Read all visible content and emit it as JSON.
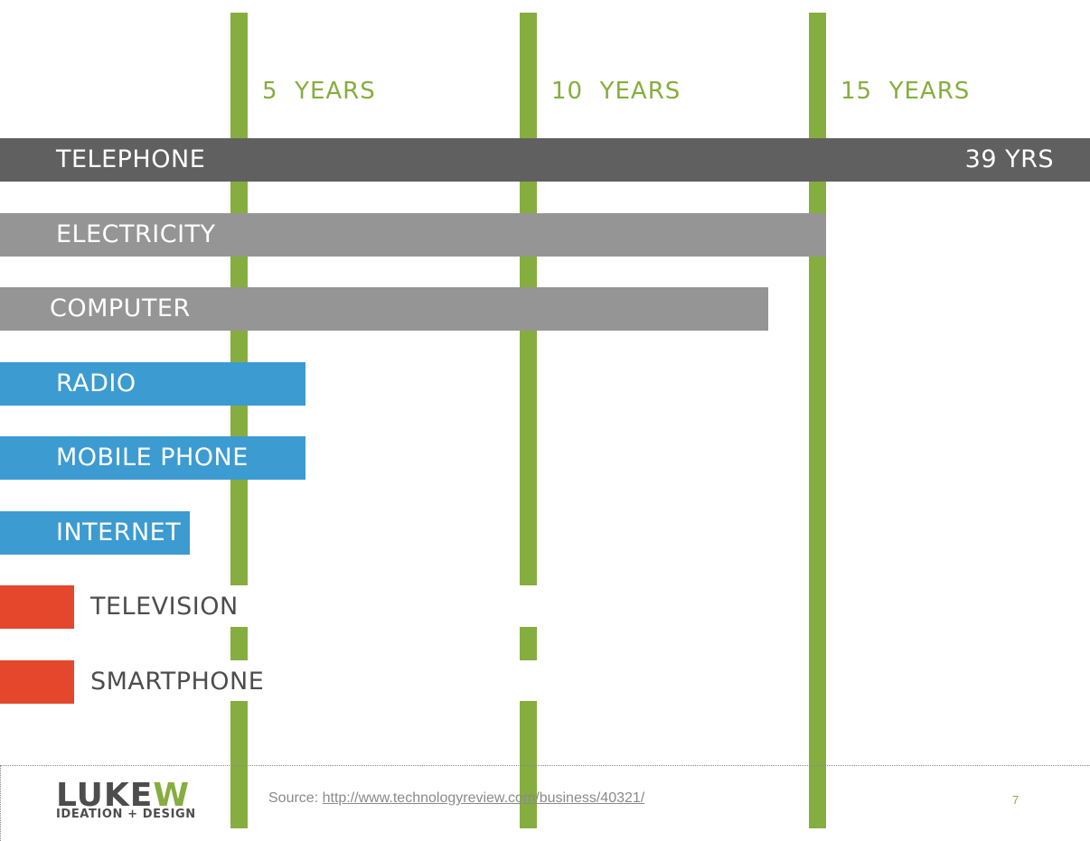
{
  "chart_data": {
    "type": "bar",
    "orientation": "horizontal",
    "title": "",
    "xlabel": "",
    "ylabel": "",
    "xlim": [
      0,
      39
    ],
    "gridlines": [
      {
        "value": 5,
        "label": "5  YEARS"
      },
      {
        "value": 10,
        "label": "10  YEARS"
      },
      {
        "value": 15,
        "label": "15  YEARS"
      }
    ],
    "categories": [
      "TELEPHONE",
      "ELECTRICITY",
      "COMPUTER",
      "RADIO",
      "MOBILE PHONE",
      "INTERNET",
      "TELEVISION",
      "SMARTPHONE"
    ],
    "values": [
      39,
      15,
      14,
      6,
      6,
      4,
      2,
      2
    ],
    "value_labels": [
      "39 YRS",
      "",
      "",
      "",
      "",
      "",
      "",
      ""
    ],
    "colors": [
      "#606060",
      "#959595",
      "#959595",
      "#3c9bd1",
      "#3c9bd1",
      "#3c9bd1",
      "#e4472b",
      "#e4472b"
    ],
    "gridline_color": "#86ad3f"
  },
  "footer": {
    "logo_word": "LUKE",
    "logo_w": "W",
    "logo_tagline": "IDEATION + DESIGN",
    "source_prefix": "Source: ",
    "source_url": "http://www.technologyreview.com/business/40321/",
    "page_number": "7"
  }
}
